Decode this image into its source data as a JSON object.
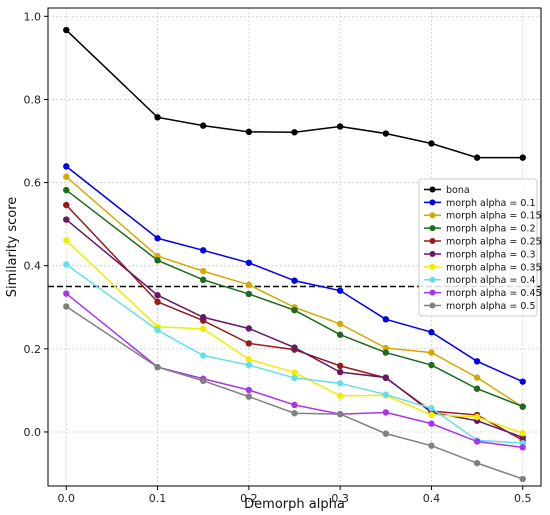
{
  "chart_data": {
    "type": "line",
    "title": "",
    "xlabel": "Demorph alpha",
    "ylabel": "Similarity score",
    "x": [
      0.0,
      0.1,
      0.15,
      0.2,
      0.25,
      0.3,
      0.35,
      0.4,
      0.45,
      0.5
    ],
    "xticks": [
      0.0,
      0.1,
      0.2,
      0.3,
      0.4,
      0.5
    ],
    "xtick_labels": [
      "0.0",
      "0.1",
      "0.2",
      "0.3",
      "0.4",
      "0.5"
    ],
    "yticks": [
      0.0,
      0.2,
      0.4,
      0.6,
      0.8,
      1.0
    ],
    "ytick_labels": [
      "0.0",
      "0.2",
      "0.4",
      "0.6",
      "0.8",
      "1.0"
    ],
    "xlim": [
      -0.02,
      0.52
    ],
    "ylim": [
      -0.13,
      1.02
    ],
    "grid": true,
    "legend_position": "center-right",
    "threshold": {
      "y": 0.35,
      "style": "dashed",
      "color": "#000000"
    },
    "series": [
      {
        "name": "bona",
        "color": "#000000",
        "values": [
          0.967,
          0.757,
          0.737,
          0.722,
          0.721,
          0.735,
          0.718,
          0.694,
          0.66,
          0.66
        ]
      },
      {
        "name": "morph alpha = 0.1",
        "color": "#0000ee",
        "values": [
          0.639,
          0.466,
          0.437,
          0.407,
          0.364,
          0.34,
          0.271,
          0.24,
          0.17,
          0.121
        ]
      },
      {
        "name": "morph alpha = 0.15",
        "color": "#d4aa00",
        "values": [
          0.614,
          0.423,
          0.387,
          0.354,
          0.3,
          0.26,
          0.202,
          0.191,
          0.131,
          0.06
        ]
      },
      {
        "name": "morph alpha = 0.2",
        "color": "#1a6b1a",
        "values": [
          0.582,
          0.413,
          0.366,
          0.332,
          0.293,
          0.234,
          0.191,
          0.161,
          0.104,
          0.061
        ]
      },
      {
        "name": "morph alpha = 0.25",
        "color": "#991a1a",
        "values": [
          0.546,
          0.313,
          0.268,
          0.213,
          0.198,
          0.159,
          0.13,
          0.05,
          0.041,
          -0.02
        ]
      },
      {
        "name": "morph alpha = 0.3",
        "color": "#661a66",
        "values": [
          0.511,
          0.329,
          0.276,
          0.249,
          0.203,
          0.144,
          0.131,
          0.047,
          0.027,
          -0.013
        ]
      },
      {
        "name": "morph alpha = 0.35",
        "color": "#eeee00",
        "values": [
          0.461,
          0.253,
          0.248,
          0.175,
          0.143,
          0.087,
          0.088,
          0.041,
          0.036,
          -0.003
        ]
      },
      {
        "name": "morph alpha = 0.4",
        "color": "#66ddee",
        "values": [
          0.403,
          0.245,
          0.184,
          0.161,
          0.13,
          0.117,
          0.09,
          0.057,
          -0.02,
          -0.027
        ]
      },
      {
        "name": "morph alpha = 0.45",
        "color": "#aa33ee",
        "values": [
          0.333,
          0.156,
          0.128,
          0.101,
          0.065,
          0.043,
          0.047,
          0.02,
          -0.023,
          -0.037
        ]
      },
      {
        "name": "morph alpha = 0.5",
        "color": "#808080",
        "values": [
          0.302,
          0.156,
          0.123,
          0.085,
          0.045,
          0.043,
          -0.004,
          -0.033,
          -0.075,
          -0.113
        ]
      }
    ]
  }
}
